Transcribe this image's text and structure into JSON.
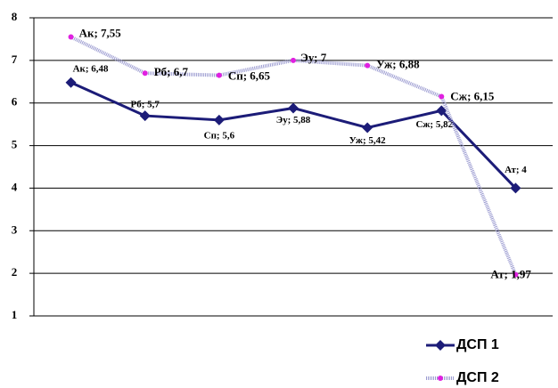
{
  "chart_data": {
    "type": "line",
    "ylim": [
      1,
      8
    ],
    "yticks": [
      1,
      2,
      3,
      4,
      5,
      6,
      7,
      8
    ],
    "grid": true,
    "legend": "bottom-right",
    "series": [
      {
        "name": "ДСП 1",
        "color": "#1c1c78",
        "marker": "diamond",
        "values": [
          6.48,
          5.7,
          5.6,
          5.88,
          5.42,
          5.82,
          4
        ],
        "value_labels": [
          "Ак; 6,48",
          "Рб; 5,7",
          "Сп; 5,6",
          "Эу; 5,88",
          "Уж; 5,42",
          "Сж; 5,82",
          "Ат; 4"
        ]
      },
      {
        "name": "ДСП 2",
        "color": "#9a9ad0",
        "marker_color": "#e020e0",
        "marker": "circle",
        "values": [
          7.55,
          6.7,
          6.65,
          7,
          6.88,
          6.15,
          1.97
        ],
        "value_labels": [
          "Ак; 7,55",
          "Рб; 6,7",
          "Сп; 6,65",
          "Эу; 7",
          "Уж; 6,88",
          "Сж; 6,15",
          "Ат; 1,97"
        ]
      }
    ]
  }
}
